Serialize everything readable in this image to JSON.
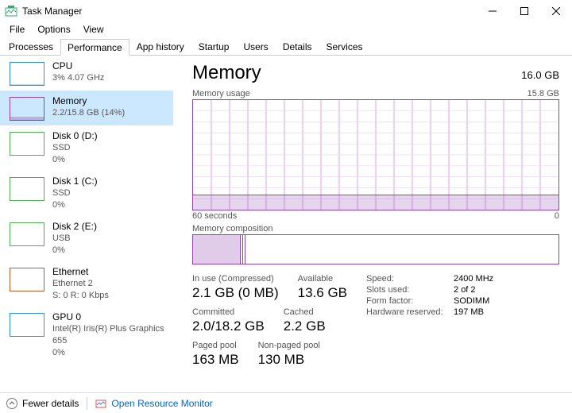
{
  "window": {
    "title": "Task Manager"
  },
  "menu": {
    "file": "File",
    "options": "Options",
    "view": "View"
  },
  "tabs": {
    "processes": "Processes",
    "performance": "Performance",
    "app_history": "App history",
    "startup": "Startup",
    "users": "Users",
    "details": "Details",
    "services": "Services"
  },
  "sidebar": [
    {
      "name": "CPU",
      "sub1": "3% 4.07 GHz",
      "border": "#2e8fdb",
      "fill_pct": 3
    },
    {
      "name": "Memory",
      "sub1": "2.2/15.8 GB (14%)",
      "border": "#8e44ad",
      "fill_pct": 14
    },
    {
      "name": "Disk 0 (D:)",
      "sub1": "SSD",
      "sub2": "0%",
      "border": "#4caf50",
      "fill_pct": 0
    },
    {
      "name": "Disk 1 (C:)",
      "sub1": "SSD",
      "sub2": "0%",
      "border": "#4caf50",
      "fill_pct": 0
    },
    {
      "name": "Disk 2 (E:)",
      "sub1": "USB",
      "sub2": "0%",
      "border": "#4caf50",
      "fill_pct": 0
    },
    {
      "name": "Ethernet",
      "sub1": "Ethernet 2",
      "sub2": "S: 0 R: 0 Kbps",
      "border": "#b85c2b",
      "fill_pct": 0
    },
    {
      "name": "GPU 0",
      "sub1": "Intel(R) Iris(R) Plus Graphics 655",
      "sub2": "0%",
      "border": "#2e8fdb",
      "fill_pct": 0
    }
  ],
  "main": {
    "title": "Memory",
    "total": "16.0 GB",
    "accent_color": "#8e44ad",
    "grid_color": "#e8d6f0",
    "usage": {
      "label": "Memory usage",
      "right_label": "15.8 GB",
      "x_left": "60 seconds",
      "x_right": "0",
      "fill_pct": 14,
      "grid_rows": 10,
      "grid_cols": 20
    },
    "composition": {
      "label": "Memory composition",
      "segments": [
        {
          "width_pct": 13,
          "fill": "rgba(142,68,173,0.28)",
          "border_right": "#8e44ad"
        },
        {
          "width_pct": 0.7,
          "fill": "#ffffff",
          "border_right": "#8e44ad"
        },
        {
          "width_pct": 0.7,
          "fill": "#ffffff",
          "border_right": "#8e44ad"
        },
        {
          "width_pct": 85.6,
          "fill": "#ffffff",
          "border_right": "none"
        }
      ]
    },
    "stats": {
      "in_use_label": "In use (Compressed)",
      "in_use": "2.1 GB (0 MB)",
      "available_label": "Available",
      "available": "13.6 GB",
      "committed_label": "Committed",
      "committed": "2.0/18.2 GB",
      "cached_label": "Cached",
      "cached": "2.2 GB",
      "paged_label": "Paged pool",
      "paged": "163 MB",
      "nonpaged_label": "Non-paged pool",
      "nonpaged": "130 MB"
    },
    "meta": {
      "speed_label": "Speed:",
      "speed": "2400 MHz",
      "slots_label": "Slots used:",
      "slots": "2 of 2",
      "form_label": "Form factor:",
      "form": "SODIMM",
      "reserved_label": "Hardware reserved:",
      "reserved": "197 MB"
    }
  },
  "footer": {
    "fewer": "Fewer details",
    "monitor": "Open Resource Monitor"
  }
}
